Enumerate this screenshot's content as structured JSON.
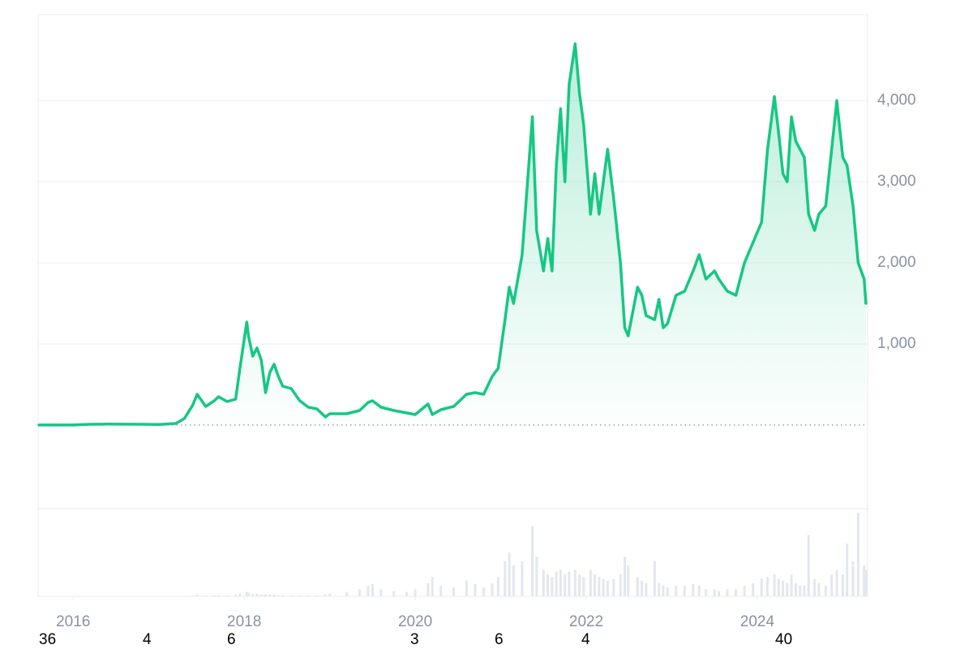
{
  "chart_data": {
    "type": "line",
    "x": [
      2015.6,
      2015.8,
      2016.0,
      2016.2,
      2016.4,
      2016.6,
      2016.8,
      2017.0,
      2017.2,
      2017.3,
      2017.4,
      2017.45,
      2017.55,
      2017.65,
      2017.7,
      2017.8,
      2017.9,
      2017.95,
      2018.03,
      2018.05,
      2018.1,
      2018.15,
      2018.2,
      2018.25,
      2018.3,
      2018.35,
      2018.4,
      2018.45,
      2018.55,
      2018.65,
      2018.75,
      2018.85,
      2018.95,
      2019.0,
      2019.2,
      2019.35,
      2019.45,
      2019.5,
      2019.6,
      2019.75,
      2019.9,
      2020.0,
      2020.15,
      2020.2,
      2020.3,
      2020.45,
      2020.6,
      2020.7,
      2020.8,
      2020.9,
      2020.97,
      2021.05,
      2021.1,
      2021.15,
      2021.25,
      2021.37,
      2021.42,
      2021.5,
      2021.55,
      2021.6,
      2021.65,
      2021.7,
      2021.75,
      2021.8,
      2021.87,
      2021.92,
      2021.97,
      2022.05,
      2022.1,
      2022.15,
      2022.2,
      2022.25,
      2022.32,
      2022.4,
      2022.45,
      2022.49,
      2022.6,
      2022.65,
      2022.7,
      2022.8,
      2022.85,
      2022.9,
      2022.95,
      2023.05,
      2023.15,
      2023.25,
      2023.32,
      2023.4,
      2023.5,
      2023.55,
      2023.65,
      2023.75,
      2023.85,
      2023.95,
      2024.05,
      2024.12,
      2024.2,
      2024.25,
      2024.3,
      2024.35,
      2024.4,
      2024.45,
      2024.5,
      2024.55,
      2024.6,
      2024.67,
      2024.72,
      2024.8,
      2024.87,
      2024.93,
      2025.0,
      2025.05,
      2025.12,
      2025.18,
      2025.25,
      2025.27
    ],
    "values": [
      1,
      1,
      1,
      10,
      12,
      11,
      10,
      8,
      20,
      80,
      250,
      380,
      230,
      300,
      350,
      290,
      320,
      700,
      1270,
      1100,
      850,
      950,
      800,
      400,
      650,
      750,
      600,
      480,
      450,
      300,
      220,
      200,
      100,
      140,
      140,
      180,
      280,
      300,
      220,
      180,
      150,
      130,
      260,
      130,
      190,
      230,
      380,
      400,
      380,
      600,
      700,
      1300,
      1700,
      1500,
      2100,
      3800,
      2400,
      1900,
      2300,
      1900,
      3200,
      3900,
      3000,
      4200,
      4700,
      4100,
      3700,
      2600,
      3100,
      2600,
      3000,
      3400,
      2800,
      2000,
      1200,
      1100,
      1700,
      1600,
      1350,
      1300,
      1550,
      1200,
      1250,
      1600,
      1650,
      1900,
      2100,
      1800,
      1900,
      1800,
      1650,
      1600,
      2000,
      2250,
      2500,
      3400,
      4050,
      3600,
      3100,
      3000,
      3800,
      3500,
      3400,
      3300,
      2600,
      2400,
      2600,
      2700,
      3400,
      4000,
      3300,
      3200,
      2700,
      2000,
      1800,
      1500
    ],
    "volume": [
      0,
      0,
      0,
      0,
      0,
      0,
      0,
      0,
      0,
      0,
      1,
      2,
      1,
      1,
      1,
      1,
      2,
      3,
      5,
      4,
      3,
      3,
      2,
      2,
      2,
      2,
      1,
      1,
      1,
      1,
      1,
      1,
      2,
      3,
      5,
      8,
      12,
      14,
      8,
      6,
      5,
      8,
      15,
      22,
      12,
      10,
      18,
      14,
      10,
      15,
      22,
      40,
      50,
      35,
      40,
      80,
      45,
      30,
      25,
      22,
      28,
      30,
      25,
      28,
      30,
      25,
      22,
      30,
      25,
      22,
      20,
      18,
      20,
      25,
      45,
      35,
      22,
      18,
      15,
      40,
      15,
      12,
      10,
      12,
      12,
      14,
      12,
      8,
      8,
      6,
      8,
      8,
      12,
      15,
      20,
      22,
      25,
      20,
      18,
      15,
      25,
      15,
      12,
      12,
      70,
      20,
      15,
      12,
      25,
      30,
      25,
      60,
      40,
      95,
      35,
      30
    ],
    "volume_ylim": [
      0,
      100
    ],
    "color": "#16c784",
    "volume_color": "#e3e7ee",
    "xlim": [
      2015.59,
      2025.29
    ],
    "xticks": [
      2016,
      2018,
      2020,
      2022,
      2024
    ],
    "ylim": [
      -1030,
      5060
    ],
    "yticks": [
      {
        "value": 1000,
        "label": "1,000"
      },
      {
        "value": 2000,
        "label": "2,000"
      },
      {
        "value": 3000,
        "label": "3,000"
      },
      {
        "value": 4000,
        "label": "4,000"
      }
    ],
    "grid": true,
    "footer_labels": [
      "36",
      "4",
      "6",
      "3",
      "6",
      "4",
      "40"
    ]
  }
}
